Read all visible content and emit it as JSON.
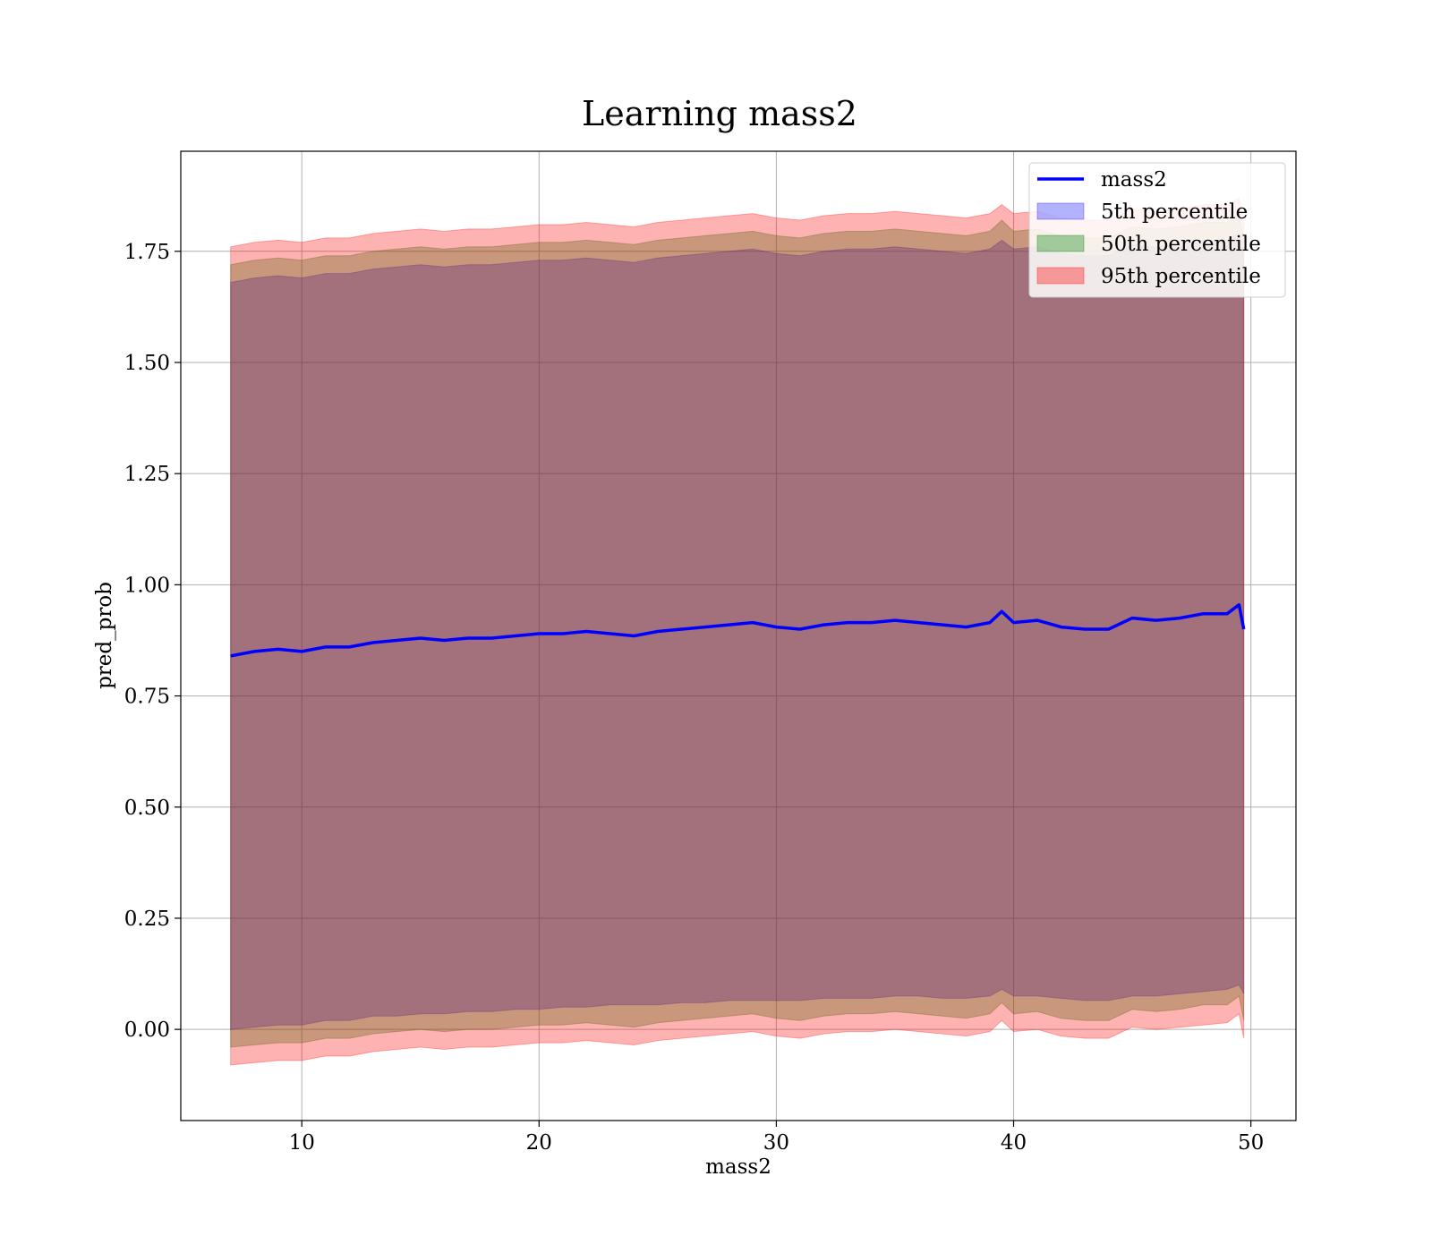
{
  "chart_data": {
    "type": "area",
    "title": "Learning mass2",
    "xlabel": "mass2",
    "ylabel": "pred_prob",
    "xlim": [
      4.9,
      51.9
    ],
    "ylim": [
      -0.205,
      1.975
    ],
    "x_ticks": [
      10,
      20,
      30,
      40,
      50
    ],
    "y_ticks": [
      0.0,
      0.25,
      0.5,
      0.75,
      1.0,
      1.25,
      1.5,
      1.75
    ],
    "x_tick_labels": [
      "10",
      "20",
      "30",
      "40",
      "50"
    ],
    "y_tick_labels": [
      "0.00",
      "0.25",
      "0.50",
      "0.75",
      "1.00",
      "1.25",
      "1.50",
      "1.75"
    ],
    "grid": true,
    "legend_position": "top-right",
    "x": [
      7.0,
      8.0,
      9.0,
      10.0,
      11.0,
      12.0,
      13.0,
      14.0,
      15.0,
      16.0,
      17.0,
      18.0,
      19.0,
      20.0,
      21.0,
      22.0,
      23.0,
      24.0,
      25.0,
      26.0,
      27.0,
      28.0,
      29.0,
      30.0,
      31.0,
      32.0,
      33.0,
      34.0,
      35.0,
      36.0,
      37.0,
      38.0,
      39.0,
      39.5,
      40.0,
      41.0,
      42.0,
      43.0,
      44.0,
      45.0,
      46.0,
      47.0,
      48.0,
      49.0,
      49.5,
      49.7
    ],
    "series": [
      {
        "name": "mass2",
        "style": "line",
        "color": "#0000ff",
        "values": [
          0.84,
          0.85,
          0.855,
          0.85,
          0.86,
          0.86,
          0.87,
          0.875,
          0.88,
          0.875,
          0.88,
          0.88,
          0.885,
          0.89,
          0.89,
          0.895,
          0.89,
          0.885,
          0.895,
          0.9,
          0.905,
          0.91,
          0.915,
          0.905,
          0.9,
          0.91,
          0.915,
          0.915,
          0.92,
          0.915,
          0.91,
          0.905,
          0.915,
          0.94,
          0.915,
          0.92,
          0.905,
          0.9,
          0.9,
          0.925,
          0.92,
          0.925,
          0.935,
          0.935,
          0.955,
          0.9
        ]
      },
      {
        "name": "5th percentile",
        "style": "band",
        "color": "#0000ff",
        "lower": [
          0.0,
          0.005,
          0.01,
          0.01,
          0.02,
          0.02,
          0.03,
          0.03,
          0.035,
          0.035,
          0.04,
          0.04,
          0.045,
          0.045,
          0.05,
          0.05,
          0.055,
          0.055,
          0.055,
          0.06,
          0.06,
          0.065,
          0.065,
          0.065,
          0.065,
          0.07,
          0.07,
          0.07,
          0.075,
          0.075,
          0.07,
          0.07,
          0.075,
          0.09,
          0.075,
          0.075,
          0.07,
          0.065,
          0.065,
          0.075,
          0.075,
          0.08,
          0.085,
          0.09,
          0.1,
          0.08
        ],
        "upper": [
          1.68,
          1.69,
          1.695,
          1.69,
          1.7,
          1.7,
          1.71,
          1.715,
          1.72,
          1.715,
          1.72,
          1.72,
          1.725,
          1.73,
          1.73,
          1.735,
          1.73,
          1.725,
          1.735,
          1.74,
          1.745,
          1.75,
          1.755,
          1.745,
          1.74,
          1.75,
          1.755,
          1.755,
          1.76,
          1.755,
          1.75,
          1.745,
          1.755,
          1.775,
          1.755,
          1.76,
          1.745,
          1.74,
          1.74,
          1.765,
          1.76,
          1.765,
          1.775,
          1.775,
          1.79,
          1.74
        ]
      },
      {
        "name": "50th percentile",
        "style": "band",
        "color": "#008000",
        "lower": [
          -0.04,
          -0.035,
          -0.03,
          -0.03,
          -0.02,
          -0.02,
          -0.01,
          -0.005,
          0.0,
          -0.005,
          0.0,
          0.0,
          0.005,
          0.01,
          0.01,
          0.015,
          0.01,
          0.005,
          0.015,
          0.02,
          0.025,
          0.03,
          0.035,
          0.025,
          0.02,
          0.03,
          0.035,
          0.035,
          0.04,
          0.035,
          0.03,
          0.025,
          0.035,
          0.06,
          0.035,
          0.04,
          0.025,
          0.02,
          0.02,
          0.045,
          0.04,
          0.045,
          0.055,
          0.055,
          0.075,
          0.02
        ],
        "upper": [
          1.72,
          1.73,
          1.735,
          1.73,
          1.74,
          1.74,
          1.75,
          1.755,
          1.76,
          1.755,
          1.76,
          1.76,
          1.765,
          1.77,
          1.77,
          1.775,
          1.77,
          1.765,
          1.775,
          1.78,
          1.785,
          1.79,
          1.795,
          1.785,
          1.78,
          1.79,
          1.795,
          1.795,
          1.8,
          1.795,
          1.79,
          1.785,
          1.795,
          1.82,
          1.795,
          1.8,
          1.785,
          1.78,
          1.78,
          1.805,
          1.8,
          1.805,
          1.815,
          1.815,
          1.835,
          1.78
        ]
      },
      {
        "name": "95th percentile",
        "style": "band",
        "color": "#ff0000",
        "lower": [
          -0.08,
          -0.075,
          -0.07,
          -0.07,
          -0.06,
          -0.06,
          -0.05,
          -0.045,
          -0.04,
          -0.045,
          -0.04,
          -0.04,
          -0.035,
          -0.03,
          -0.03,
          -0.025,
          -0.03,
          -0.035,
          -0.025,
          -0.02,
          -0.015,
          -0.01,
          -0.005,
          -0.015,
          -0.02,
          -0.01,
          -0.005,
          -0.005,
          0.0,
          -0.005,
          -0.01,
          -0.015,
          -0.005,
          0.02,
          -0.005,
          0.0,
          -0.015,
          -0.02,
          -0.02,
          0.005,
          0.0,
          0.005,
          0.01,
          0.015,
          0.035,
          -0.02
        ],
        "upper": [
          1.76,
          1.77,
          1.775,
          1.77,
          1.78,
          1.78,
          1.79,
          1.795,
          1.8,
          1.795,
          1.8,
          1.8,
          1.805,
          1.81,
          1.81,
          1.815,
          1.81,
          1.805,
          1.815,
          1.82,
          1.825,
          1.83,
          1.835,
          1.825,
          1.82,
          1.83,
          1.835,
          1.835,
          1.84,
          1.835,
          1.83,
          1.825,
          1.835,
          1.855,
          1.835,
          1.84,
          1.825,
          1.82,
          1.82,
          1.845,
          1.84,
          1.845,
          1.855,
          1.855,
          1.87,
          1.82
        ]
      }
    ]
  }
}
